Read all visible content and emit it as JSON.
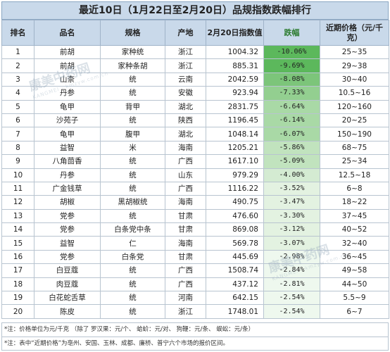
{
  "title": "最近10日（1月22日至2月20日）品规指数跌幅排行",
  "headers": {
    "rank": "排名",
    "name": "品名",
    "spec": "规格",
    "origin": "产地",
    "index": "2月20日指数值",
    "change": "跌幅",
    "price": "近期价格（元/千克）"
  },
  "rows": [
    {
      "rank": "1",
      "name": "前胡",
      "spec": "家种统",
      "origin": "浙江",
      "index": "1004.32",
      "change": "-10.06%",
      "price": "25~35"
    },
    {
      "rank": "2",
      "name": "前胡",
      "spec": "家种条胡",
      "origin": "浙江",
      "index": "885.31",
      "change": "-9.69%",
      "price": "29~38"
    },
    {
      "rank": "3",
      "name": "山柰",
      "spec": "统",
      "origin": "云南",
      "index": "2042.59",
      "change": "-8.08%",
      "price": "30~40"
    },
    {
      "rank": "4",
      "name": "丹参",
      "spec": "统",
      "origin": "安徽",
      "index": "923.94",
      "change": "-7.33%",
      "price": "10.5~16"
    },
    {
      "rank": "5",
      "name": "龟甲",
      "spec": "背甲",
      "origin": "湖北",
      "index": "2831.75",
      "change": "-6.64%",
      "price": "120~160"
    },
    {
      "rank": "6",
      "name": "沙苑子",
      "spec": "统",
      "origin": "陕西",
      "index": "1196.45",
      "change": "-6.14%",
      "price": "20~25"
    },
    {
      "rank": "7",
      "name": "龟甲",
      "spec": "腹甲",
      "origin": "湖北",
      "index": "1048.14",
      "change": "-6.07%",
      "price": "150~190"
    },
    {
      "rank": "8",
      "name": "益智",
      "spec": "米",
      "origin": "海南",
      "index": "1205.21",
      "change": "-5.86%",
      "price": "68~75"
    },
    {
      "rank": "9",
      "name": "八角茴香",
      "spec": "统",
      "origin": "广西",
      "index": "1617.10",
      "change": "-5.09%",
      "price": "25~34"
    },
    {
      "rank": "10",
      "name": "丹参",
      "spec": "统",
      "origin": "山东",
      "index": "979.29",
      "change": "-4.00%",
      "price": "12.5~18"
    },
    {
      "rank": "11",
      "name": "广金钱草",
      "spec": "统",
      "origin": "广西",
      "index": "1116.22",
      "change": "-3.52%",
      "price": "6~8"
    },
    {
      "rank": "12",
      "name": "胡椒",
      "spec": "黑胡椒统",
      "origin": "海南",
      "index": "490.75",
      "change": "-3.47%",
      "price": "18~22"
    },
    {
      "rank": "13",
      "name": "党参",
      "spec": "统",
      "origin": "甘肃",
      "index": "476.60",
      "change": "-3.30%",
      "price": "37~45"
    },
    {
      "rank": "14",
      "name": "党参",
      "spec": "白条党中条",
      "origin": "甘肃",
      "index": "869.08",
      "change": "-3.12%",
      "price": "40~52"
    },
    {
      "rank": "15",
      "name": "益智",
      "spec": "仁",
      "origin": "海南",
      "index": "569.78",
      "change": "-3.07%",
      "price": "32~40"
    },
    {
      "rank": "16",
      "name": "党参",
      "spec": "白条党",
      "origin": "甘肃",
      "index": "445.69",
      "change": "-2.98%",
      "price": "36~45"
    },
    {
      "rank": "17",
      "name": "白豆蔻",
      "spec": "统",
      "origin": "广西",
      "index": "1508.74",
      "change": "-2.84%",
      "price": "49~58"
    },
    {
      "rank": "18",
      "name": "肉豆蔻",
      "spec": "统",
      "origin": "广西",
      "index": "437.12",
      "change": "-2.81%",
      "price": "44~50"
    },
    {
      "rank": "19",
      "name": "白花蛇舌草",
      "spec": "统",
      "origin": "河南",
      "index": "642.15",
      "change": "-2.54%",
      "price": "5.5~9"
    },
    {
      "rank": "20",
      "name": "陈皮",
      "spec": "统",
      "origin": "浙江",
      "index": "1748.01",
      "change": "-2.54%",
      "price": "6~7"
    }
  ],
  "notes": [
    "*注：价格单位为元/千克 （除了 罗汉果：元/个、 蛤蚧：元/对、 狗鞭：元/条、 蜈蚣：元/条）",
    "*注：表中“近期价格”为亳州、安国、玉林、成都、廉桥、普宁六个市场的报价区间。"
  ],
  "watermark": {
    "text": "康美中药网",
    "sub": "KANGMEI · kmzyw.com.cn"
  },
  "colors": {
    "header_bg": "#c9d9ea",
    "strong_green": "#5cb85c",
    "light_green": "#eef8ee"
  }
}
